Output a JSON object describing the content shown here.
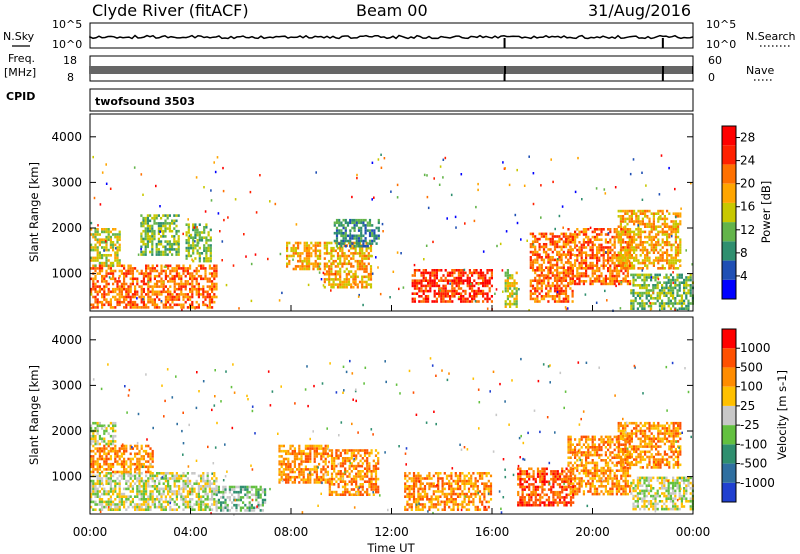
{
  "header": {
    "station": "Clyde River (fitACF)",
    "beam": "Beam 00",
    "date": "31/Aug/2016"
  },
  "top_panels": {
    "nsky_label": "N.Sky",
    "nsearch_label": "N.Search",
    "freq_label_1": "Freq.",
    "freq_label_2": "[MHz]",
    "nave_label": "Nave",
    "cpid_label": "CPID",
    "cpid_value": "twofsound 3503",
    "nsky_ticks": [
      "10^5",
      "10^0"
    ],
    "nsearch_ticks": [
      "10^5",
      "10^0"
    ],
    "freq_ticks": [
      "18",
      "8"
    ],
    "nave_ticks": [
      "60",
      "0"
    ]
  },
  "chart_data": [
    {
      "type": "heatmap",
      "panel": "power",
      "ylabel": "Slant Range [km]",
      "xlabel": "",
      "x_range": [
        "00:00",
        "24:00"
      ],
      "ylim": [
        180,
        4500
      ],
      "yticks": [
        1000,
        2000,
        3000,
        4000
      ],
      "colorbar": {
        "label": "Power [dB]",
        "ticks": [
          4,
          8,
          12,
          16,
          20,
          24,
          28
        ],
        "range": [
          0,
          30
        ],
        "colors": [
          "#0000ff",
          "#1f4fb4",
          "#2f8f6f",
          "#63b44a",
          "#c8c800",
          "#ffa500",
          "#ff7000",
          "#ff2000",
          "#ff0000"
        ]
      },
      "regions": [
        {
          "t0": 0.0,
          "t1": 5.0,
          "r0": 250,
          "r1": 1200,
          "level": 24
        },
        {
          "t0": 0.0,
          "t1": 1.2,
          "r0": 1200,
          "r1": 2000,
          "level": 14
        },
        {
          "t0": 2.0,
          "t1": 3.5,
          "r0": 1400,
          "r1": 2300,
          "level": 12
        },
        {
          "t0": 3.8,
          "t1": 4.8,
          "r0": 1300,
          "r1": 2100,
          "level": 10
        },
        {
          "t0": 7.8,
          "t1": 9.2,
          "r0": 1100,
          "r1": 1700,
          "level": 20
        },
        {
          "t0": 9.3,
          "t1": 11.2,
          "r0": 700,
          "r1": 1700,
          "level": 18
        },
        {
          "t0": 9.7,
          "t1": 11.5,
          "r0": 1600,
          "r1": 2200,
          "level": 8
        },
        {
          "t0": 12.8,
          "t1": 16.0,
          "r0": 400,
          "r1": 1100,
          "level": 26
        },
        {
          "t0": 16.5,
          "t1": 17.0,
          "r0": 300,
          "r1": 1100,
          "level": 14
        },
        {
          "t0": 17.5,
          "t1": 19.2,
          "r0": 400,
          "r1": 1900,
          "level": 22
        },
        {
          "t0": 19.0,
          "t1": 21.5,
          "r0": 800,
          "r1": 2000,
          "level": 24
        },
        {
          "t0": 21.0,
          "t1": 23.5,
          "r0": 1100,
          "r1": 2400,
          "level": 18
        },
        {
          "t0": 21.5,
          "t1": 24.0,
          "r0": 250,
          "r1": 1000,
          "level": 12
        }
      ]
    },
    {
      "type": "heatmap",
      "panel": "velocity",
      "ylabel": "Slant Range [km]",
      "xlabel": "Time UT",
      "x_range": [
        "00:00",
        "24:00"
      ],
      "xticks": [
        "00:00",
        "04:00",
        "08:00",
        "12:00",
        "16:00",
        "20:00",
        "00:00"
      ],
      "ylim": [
        180,
        4500
      ],
      "yticks": [
        1000,
        2000,
        3000,
        4000
      ],
      "colorbar": {
        "label": "Velocity [m s-1]",
        "ticks": [
          "1000",
          "500",
          "100",
          "25",
          "-25",
          "-100",
          "-500",
          "-1000"
        ],
        "colors": [
          "#2040d0",
          "#2f6fa0",
          "#2f8f6f",
          "#63c040",
          "#c8c8c8",
          "#ffc000",
          "#ff8c00",
          "#ff5000",
          "#ff0000"
        ]
      },
      "regions": [
        {
          "t0": 0.0,
          "t1": 5.0,
          "r0": 300,
          "r1": 1100,
          "level": "25"
        },
        {
          "t0": 0.0,
          "t1": 2.5,
          "r0": 1100,
          "r1": 1700,
          "level": "-100"
        },
        {
          "t0": 0.0,
          "t1": 1.0,
          "r0": 1700,
          "r1": 2200,
          "level": "25"
        },
        {
          "t0": 5.0,
          "t1": 7.0,
          "r0": 250,
          "r1": 800,
          "level": "100"
        },
        {
          "t0": 7.5,
          "t1": 9.5,
          "r0": 900,
          "r1": 1700,
          "level": "-100"
        },
        {
          "t0": 9.5,
          "t1": 11.5,
          "r0": 600,
          "r1": 1600,
          "level": "-100"
        },
        {
          "t0": 12.5,
          "t1": 16.0,
          "r0": 300,
          "r1": 1100,
          "level": "-100"
        },
        {
          "t0": 17.0,
          "t1": 19.2,
          "r0": 400,
          "r1": 1200,
          "level": "-500"
        },
        {
          "t0": 19.0,
          "t1": 21.5,
          "r0": 600,
          "r1": 1900,
          "level": "-100"
        },
        {
          "t0": 21.0,
          "t1": 23.5,
          "r0": 1200,
          "r1": 2200,
          "level": "-100"
        },
        {
          "t0": 21.5,
          "t1": 24.0,
          "r0": 300,
          "r1": 1000,
          "level": "25"
        }
      ]
    }
  ]
}
